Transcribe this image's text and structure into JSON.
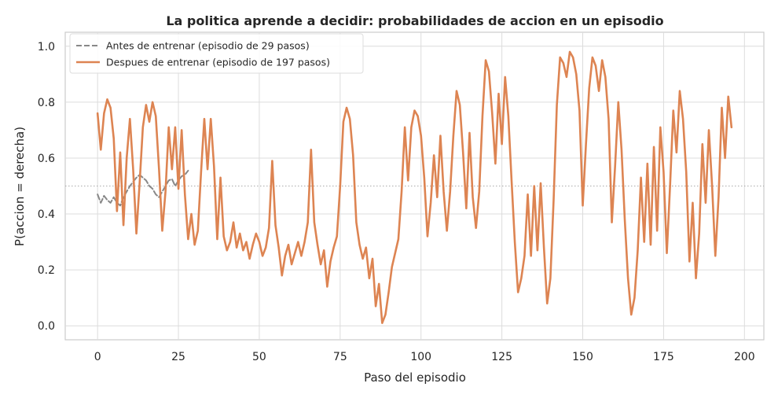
{
  "chart_data": {
    "type": "line",
    "title": "La politica aprende a decidir: probabilidades de accion en un episodio",
    "xlabel": "Paso del episodio",
    "ylabel": "P(accion = derecha)",
    "xlim": [
      -10,
      206
    ],
    "ylim": [
      -0.05,
      1.05
    ],
    "xticks": [
      0,
      25,
      50,
      75,
      100,
      125,
      150,
      175,
      200
    ],
    "yticks": [
      0.0,
      0.2,
      0.4,
      0.6,
      0.8,
      1.0
    ],
    "xtick_labels": [
      "0",
      "25",
      "50",
      "75",
      "100",
      "125",
      "150",
      "175",
      "200"
    ],
    "ytick_labels": [
      "0.0",
      "0.2",
      "0.4",
      "0.6",
      "0.8",
      "1.0"
    ],
    "grid": true,
    "reference_line": {
      "y": 0.5,
      "style": "dotted",
      "color": "#aaaaaa"
    },
    "legend_position": "top-left",
    "series": [
      {
        "name": "Antes de entrenar (episodio de 29 pasos)",
        "color": "#888888",
        "style": "dashed",
        "x": [
          0,
          1,
          2,
          3,
          4,
          5,
          6,
          7,
          8,
          9,
          10,
          11,
          12,
          13,
          14,
          15,
          16,
          17,
          18,
          19,
          20,
          21,
          22,
          23,
          24,
          25,
          26,
          27,
          28
        ],
        "y": [
          0.47,
          0.44,
          0.465,
          0.45,
          0.44,
          0.46,
          0.44,
          0.43,
          0.46,
          0.48,
          0.5,
          0.515,
          0.53,
          0.54,
          0.53,
          0.52,
          0.5,
          0.49,
          0.47,
          0.46,
          0.48,
          0.5,
          0.52,
          0.525,
          0.5,
          0.52,
          0.535,
          0.54,
          0.555
        ]
      },
      {
        "name": "Despues de entrenar (episodio de 197 pasos)",
        "color": "#dd8452",
        "style": "solid",
        "x": [
          0,
          1,
          2,
          3,
          4,
          5,
          6,
          7,
          8,
          9,
          10,
          11,
          12,
          13,
          14,
          15,
          16,
          17,
          18,
          19,
          20,
          21,
          22,
          23,
          24,
          25,
          26,
          27,
          28,
          29,
          30,
          31,
          32,
          33,
          34,
          35,
          36,
          37,
          38,
          39,
          40,
          41,
          42,
          43,
          44,
          45,
          46,
          47,
          48,
          49,
          50,
          51,
          52,
          53,
          54,
          55,
          56,
          57,
          58,
          59,
          60,
          61,
          62,
          63,
          64,
          65,
          66,
          67,
          68,
          69,
          70,
          71,
          72,
          73,
          74,
          75,
          76,
          77,
          78,
          79,
          80,
          81,
          82,
          83,
          84,
          85,
          86,
          87,
          88,
          89,
          90,
          91,
          92,
          93,
          94,
          95,
          96,
          97,
          98,
          99,
          100,
          101,
          102,
          103,
          104,
          105,
          106,
          107,
          108,
          109,
          110,
          111,
          112,
          113,
          114,
          115,
          116,
          117,
          118,
          119,
          120,
          121,
          122,
          123,
          124,
          125,
          126,
          127,
          128,
          129,
          130,
          131,
          132,
          133,
          134,
          135,
          136,
          137,
          138,
          139,
          140,
          141,
          142,
          143,
          144,
          145,
          146,
          147,
          148,
          149,
          150,
          151,
          152,
          153,
          154,
          155,
          156,
          157,
          158,
          159,
          160,
          161,
          162,
          163,
          164,
          165,
          166,
          167,
          168,
          169,
          170,
          171,
          172,
          173,
          174,
          175,
          176,
          177,
          178,
          179,
          180,
          181,
          182,
          183,
          184,
          185,
          186,
          187,
          188,
          189,
          190,
          191,
          192,
          193,
          194,
          195,
          196
        ],
        "y": [
          0.76,
          0.63,
          0.76,
          0.81,
          0.78,
          0.67,
          0.41,
          0.62,
          0.36,
          0.6,
          0.74,
          0.56,
          0.33,
          0.51,
          0.71,
          0.79,
          0.73,
          0.8,
          0.75,
          0.56,
          0.34,
          0.48,
          0.71,
          0.56,
          0.71,
          0.49,
          0.7,
          0.47,
          0.31,
          0.4,
          0.29,
          0.34,
          0.55,
          0.74,
          0.56,
          0.74,
          0.57,
          0.31,
          0.53,
          0.32,
          0.27,
          0.3,
          0.37,
          0.28,
          0.33,
          0.27,
          0.3,
          0.24,
          0.29,
          0.33,
          0.3,
          0.25,
          0.28,
          0.35,
          0.59,
          0.36,
          0.28,
          0.18,
          0.25,
          0.29,
          0.22,
          0.26,
          0.3,
          0.25,
          0.3,
          0.37,
          0.63,
          0.37,
          0.29,
          0.22,
          0.27,
          0.14,
          0.23,
          0.28,
          0.32,
          0.5,
          0.73,
          0.78,
          0.74,
          0.61,
          0.37,
          0.29,
          0.24,
          0.28,
          0.17,
          0.24,
          0.07,
          0.15,
          0.01,
          0.04,
          0.12,
          0.21,
          0.26,
          0.31,
          0.48,
          0.71,
          0.52,
          0.71,
          0.77,
          0.75,
          0.68,
          0.53,
          0.32,
          0.44,
          0.61,
          0.46,
          0.68,
          0.48,
          0.34,
          0.48,
          0.68,
          0.84,
          0.79,
          0.62,
          0.42,
          0.69,
          0.46,
          0.35,
          0.48,
          0.75,
          0.95,
          0.91,
          0.76,
          0.58,
          0.83,
          0.65,
          0.89,
          0.75,
          0.52,
          0.3,
          0.12,
          0.17,
          0.25,
          0.47,
          0.25,
          0.5,
          0.27,
          0.51,
          0.28,
          0.08,
          0.17,
          0.45,
          0.79,
          0.96,
          0.94,
          0.89,
          0.98,
          0.96,
          0.9,
          0.77,
          0.43,
          0.65,
          0.85,
          0.96,
          0.93,
          0.84,
          0.95,
          0.89,
          0.74,
          0.37,
          0.57,
          0.8,
          0.63,
          0.38,
          0.17,
          0.04,
          0.1,
          0.27,
          0.53,
          0.3,
          0.58,
          0.29,
          0.64,
          0.34,
          0.71,
          0.55,
          0.26,
          0.5,
          0.77,
          0.62,
          0.84,
          0.74,
          0.55,
          0.23,
          0.44,
          0.17,
          0.33,
          0.65,
          0.44,
          0.7,
          0.5,
          0.25,
          0.46,
          0.78,
          0.6,
          0.82,
          0.71
        ]
      }
    ]
  }
}
